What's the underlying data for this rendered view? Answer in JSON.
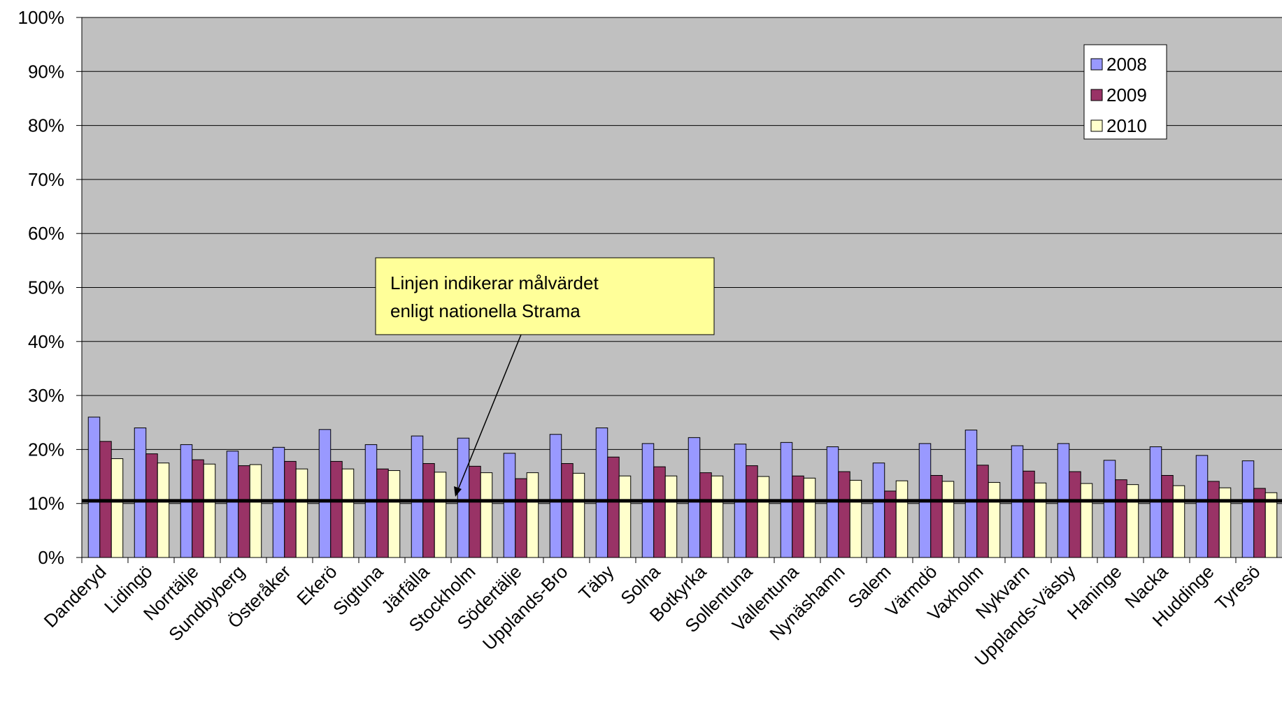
{
  "chart_data": {
    "type": "bar",
    "categories": [
      "Danderyd",
      "Lidingö",
      "Norrtälje",
      "Sundbyberg",
      "Österåker",
      "Ekerö",
      "Sigtuna",
      "Järfälla",
      "Stockholm",
      "Södertälje",
      "Upplands-Bro",
      "Täby",
      "Solna",
      "Botkyrka",
      "Sollentuna",
      "Vallentuna",
      "Nynäshamn",
      "Salem",
      "Värmdö",
      "Vaxholm",
      "Nykvarn",
      "Upplands-Väsby",
      "Haninge",
      "Nacka",
      "Huddinge",
      "Tyresö"
    ],
    "series": [
      {
        "name": "2008",
        "color": "#9999ff",
        "values": [
          26,
          24,
          20.9,
          19.7,
          20.4,
          23.7,
          20.9,
          22.5,
          22.1,
          19.3,
          22.8,
          24,
          21.1,
          22.2,
          21,
          21.3,
          20.5,
          17.5,
          21.1,
          23.6,
          20.7,
          21.1,
          18,
          20.5,
          18.9,
          17.9
        ]
      },
      {
        "name": "2009",
        "color": "#993366",
        "values": [
          21.5,
          19.2,
          18.1,
          17,
          17.8,
          17.8,
          16.4,
          17.4,
          16.9,
          14.6,
          17.4,
          18.6,
          16.8,
          15.7,
          17,
          15.1,
          15.9,
          12.3,
          15.2,
          17.1,
          16,
          15.9,
          14.4,
          15.2,
          14.1,
          12.8
        ]
      },
      {
        "name": "2010",
        "color": "#ffffcc",
        "values": [
          18.3,
          17.5,
          17.3,
          17.2,
          16.4,
          16.4,
          16.1,
          15.8,
          15.7,
          15.7,
          15.6,
          15.1,
          15.1,
          15.1,
          15,
          14.7,
          14.3,
          14.2,
          14.1,
          13.9,
          13.8,
          13.7,
          13.5,
          13.3,
          12.9,
          12
        ]
      }
    ],
    "ylim": [
      0,
      100
    ],
    "yticks": [
      {
        "value": 0,
        "label": "0%"
      },
      {
        "value": 10,
        "label": "10%"
      },
      {
        "value": 20,
        "label": "20%"
      },
      {
        "value": 30,
        "label": "30%"
      },
      {
        "value": 40,
        "label": "40%"
      },
      {
        "value": 50,
        "label": "50%"
      },
      {
        "value": 60,
        "label": "60%"
      },
      {
        "value": 70,
        "label": "70%"
      },
      {
        "value": 80,
        "label": "80%"
      },
      {
        "value": 90,
        "label": "90%"
      },
      {
        "value": 100,
        "label": "100%"
      }
    ],
    "grid": true,
    "legend": "upper right",
    "background": "#c0c0c0",
    "target": 10.5,
    "annotation": [
      "Linjen indikerar målvärdet",
      "enligt nationella Strama"
    ]
  }
}
